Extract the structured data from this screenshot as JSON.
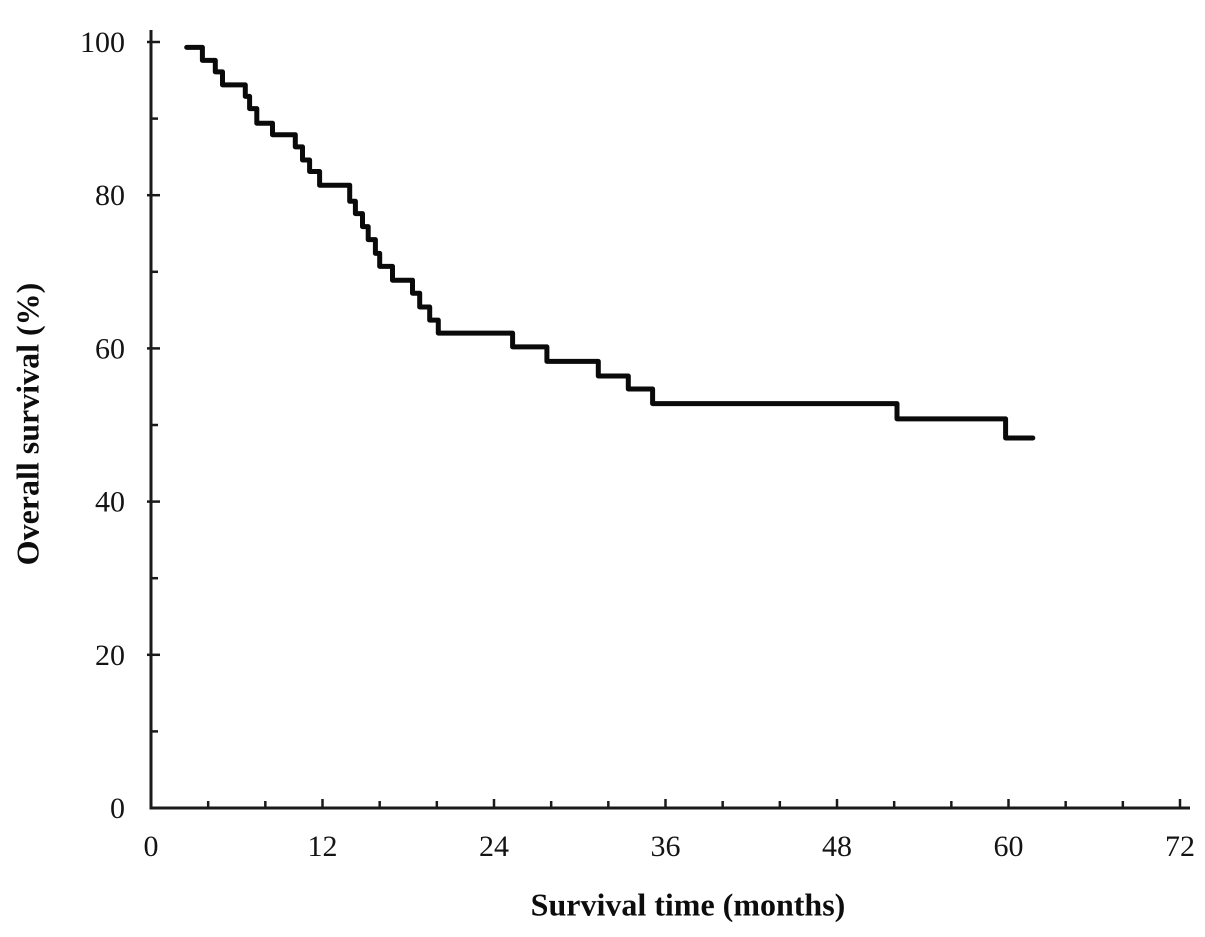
{
  "figure": {
    "xlabel": "Survival time (months)",
    "ylabel": "Overall survival (%)"
  },
  "chart_data": {
    "type": "line",
    "subtype": "kaplan-meier-step-curve",
    "title": "",
    "xlabel": "Survival time (months)",
    "ylabel": "Overall survival (%)",
    "xlim": [
      0,
      72
    ],
    "ylim": [
      0,
      100
    ],
    "x_major_ticks": [
      0,
      12,
      24,
      36,
      48,
      60,
      72
    ],
    "x_minor_tick_interval": 4,
    "y_major_ticks": [
      0,
      20,
      40,
      60,
      80,
      100
    ],
    "y_minor_tick_interval": 10,
    "grid": false,
    "legend": null,
    "line_color": "#0a0a0a",
    "axis_color": "#1a1a1a",
    "series": [
      {
        "name": "Overall survival",
        "steps": [
          [
            2.5,
            99.3
          ],
          [
            3.6,
            97.6
          ],
          [
            4.5,
            96.1
          ],
          [
            5.0,
            94.4
          ],
          [
            6.6,
            92.9
          ],
          [
            6.9,
            91.3
          ],
          [
            7.4,
            89.4
          ],
          [
            8.5,
            87.9
          ],
          [
            10.1,
            86.3
          ],
          [
            10.6,
            84.6
          ],
          [
            11.1,
            83.1
          ],
          [
            11.8,
            81.3
          ],
          [
            13.9,
            79.2
          ],
          [
            14.3,
            77.6
          ],
          [
            14.8,
            75.9
          ],
          [
            15.2,
            74.2
          ],
          [
            15.7,
            72.4
          ],
          [
            16.0,
            70.7
          ],
          [
            16.9,
            68.9
          ],
          [
            18.3,
            67.2
          ],
          [
            18.8,
            65.4
          ],
          [
            19.5,
            63.7
          ],
          [
            20.1,
            62.0
          ],
          [
            25.3,
            60.2
          ],
          [
            27.7,
            58.3
          ],
          [
            31.3,
            56.4
          ],
          [
            33.4,
            54.7
          ],
          [
            35.1,
            52.8
          ],
          [
            52.2,
            50.8
          ],
          [
            59.8,
            48.3
          ]
        ],
        "end_time": 61.7
      }
    ]
  }
}
